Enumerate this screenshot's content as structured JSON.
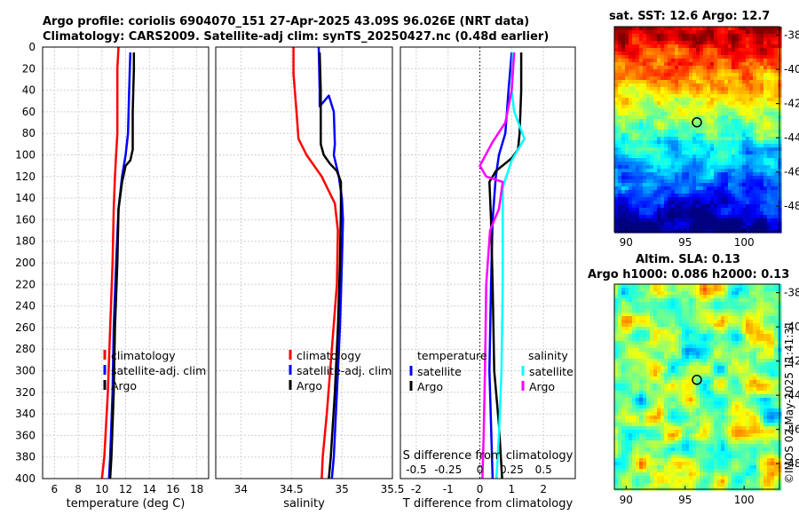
{
  "header": {
    "line1": "Argo profile: coriolis 6904070_151 27-Apr-2025 43.09S 96.026E (NRT data)",
    "line2": "Climatology: CARS2009. Satellite-adj clim: synTS_20250427.nc (0.48d earlier)"
  },
  "colors": {
    "climatology": "#ff0000",
    "satellite": "#0000ff",
    "argo": "#000000",
    "s_satellite": "#00ffff",
    "s_argo": "#ff00ff"
  },
  "chart_data": [
    {
      "type": "line",
      "xlabel": "temperature (deg C)",
      "ylabel": "",
      "xlim": [
        5,
        19
      ],
      "ylim": [
        400,
        0
      ],
      "xticks": [
        "6",
        "8",
        "10",
        "12",
        "14",
        "16",
        "18"
      ],
      "yticks": [
        "0",
        "20",
        "40",
        "60",
        "80",
        "100",
        "120",
        "140",
        "160",
        "180",
        "200",
        "220",
        "240",
        "260",
        "280",
        "300",
        "320",
        "340",
        "360",
        "380",
        "400"
      ],
      "legend": [
        "climatology",
        "satellite-adj. clim",
        "Argo"
      ],
      "series": [
        {
          "name": "climatology",
          "color": "#ff0000",
          "points": [
            [
              11.4,
              0
            ],
            [
              11.3,
              20
            ],
            [
              11.3,
              80
            ],
            [
              11.2,
              100
            ],
            [
              11.1,
              120
            ],
            [
              11.0,
              150
            ],
            [
              10.9,
              200
            ],
            [
              10.7,
              260
            ],
            [
              10.5,
              320
            ],
            [
              10.2,
              380
            ],
            [
              10.0,
              400
            ]
          ]
        },
        {
          "name": "satellite-adj. clim",
          "color": "#0000ff",
          "points": [
            [
              12.4,
              5
            ],
            [
              12.3,
              40
            ],
            [
              12.2,
              80
            ],
            [
              12.0,
              100
            ],
            [
              11.7,
              120
            ],
            [
              11.4,
              150
            ],
            [
              11.2,
              200
            ],
            [
              11.0,
              260
            ],
            [
              10.9,
              320
            ],
            [
              10.7,
              380
            ],
            [
              10.6,
              400
            ]
          ]
        },
        {
          "name": "Argo",
          "color": "#000000",
          "points": [
            [
              12.7,
              5
            ],
            [
              12.7,
              20
            ],
            [
              12.6,
              60
            ],
            [
              12.6,
              95
            ],
            [
              12.4,
              105
            ],
            [
              12.0,
              110
            ],
            [
              11.7,
              125
            ],
            [
              11.4,
              150
            ],
            [
              11.3,
              200
            ],
            [
              11.1,
              260
            ],
            [
              11.0,
              320
            ],
            [
              10.8,
              380
            ],
            [
              10.7,
              400
            ]
          ]
        }
      ]
    },
    {
      "type": "line",
      "xlabel": "salinity",
      "xlim": [
        33.75,
        35.5
      ],
      "ylim": [
        400,
        0
      ],
      "xticks": [
        "34",
        "34.5",
        "35",
        "35.5"
      ],
      "legend": [
        "climatology",
        "satellite-adj. clim",
        "Argo"
      ],
      "series": [
        {
          "name": "climatology",
          "color": "#ff0000",
          "points": [
            [
              34.52,
              0
            ],
            [
              34.52,
              25
            ],
            [
              34.55,
              60
            ],
            [
              34.57,
              85
            ],
            [
              34.65,
              100
            ],
            [
              34.8,
              120
            ],
            [
              34.93,
              145
            ],
            [
              34.96,
              170
            ],
            [
              34.95,
              220
            ],
            [
              34.9,
              280
            ],
            [
              34.85,
              340
            ],
            [
              34.81,
              380
            ],
            [
              34.8,
              400
            ]
          ]
        },
        {
          "name": "satellite-adj. clim",
          "color": "#0000ff",
          "points": [
            [
              34.77,
              0
            ],
            [
              34.78,
              40
            ],
            [
              34.78,
              55
            ],
            [
              34.87,
              45
            ],
            [
              34.92,
              60
            ],
            [
              34.93,
              90
            ],
            [
              34.92,
              100
            ],
            [
              34.97,
              120
            ],
            [
              35.0,
              140
            ],
            [
              35.01,
              160
            ],
            [
              35.0,
              200
            ],
            [
              34.98,
              260
            ],
            [
              34.95,
              320
            ],
            [
              34.92,
              380
            ],
            [
              34.9,
              400
            ]
          ]
        },
        {
          "name": "Argo",
          "color": "#000000",
          "points": [
            [
              34.78,
              5
            ],
            [
              34.79,
              40
            ],
            [
              34.79,
              90
            ],
            [
              34.82,
              100
            ],
            [
              34.88,
              108
            ],
            [
              34.95,
              115
            ],
            [
              34.99,
              125
            ],
            [
              34.99,
              150
            ],
            [
              34.98,
              200
            ],
            [
              34.96,
              260
            ],
            [
              34.93,
              320
            ],
            [
              34.89,
              380
            ],
            [
              34.87,
              400
            ]
          ]
        }
      ]
    },
    {
      "type": "line",
      "xlabel": "T difference from climatology",
      "x2label": "S difference from climatology",
      "xlim": [
        -2.5,
        3.0
      ],
      "x2lim": [
        -0.625,
        0.75
      ],
      "ylim": [
        400,
        0
      ],
      "xticks": [
        "-2",
        "-1",
        "0",
        "1",
        "2"
      ],
      "x2ticks": [
        "-0.5",
        "-0.25",
        "0",
        "0.25",
        "0.5"
      ],
      "legend_temperature_title": "temperature",
      "legend_salinity_title": "salinity",
      "legend_temperature": [
        "satellite",
        "Argo"
      ],
      "legend_salinity": [
        "satellite",
        "Argo"
      ],
      "series": [
        {
          "name": "T satellite",
          "color": "#0000ff",
          "points": [
            [
              1.0,
              5
            ],
            [
              0.9,
              40
            ],
            [
              0.8,
              80
            ],
            [
              0.6,
              100
            ],
            [
              0.5,
              120
            ],
            [
              0.4,
              160
            ],
            [
              0.35,
              220
            ],
            [
              0.3,
              300
            ],
            [
              0.35,
              350
            ],
            [
              0.4,
              400
            ]
          ]
        },
        {
          "name": "T Argo",
          "color": "#000000",
          "points": [
            [
              1.3,
              5
            ],
            [
              1.3,
              40
            ],
            [
              1.25,
              80
            ],
            [
              1.2,
              95
            ],
            [
              1.0,
              103
            ],
            [
              0.5,
              115
            ],
            [
              0.3,
              125
            ],
            [
              0.35,
              160
            ],
            [
              0.4,
              220
            ],
            [
              0.45,
              300
            ],
            [
              0.6,
              350
            ],
            [
              0.7,
              400
            ]
          ]
        },
        {
          "name": "S satellite",
          "color": "#00ffff",
          "points": [
            [
              0.26,
              5
            ],
            [
              0.25,
              40
            ],
            [
              0.27,
              60
            ],
            [
              0.35,
              85
            ],
            [
              0.25,
              105
            ],
            [
              0.18,
              130
            ],
            [
              0.18,
              170
            ],
            [
              0.18,
              220
            ],
            [
              0.17,
              300
            ],
            [
              0.15,
              360
            ],
            [
              0.13,
              400
            ]
          ]
        },
        {
          "name": "S Argo",
          "color": "#ff00ff",
          "points": [
            [
              0.27,
              5
            ],
            [
              0.25,
              40
            ],
            [
              0.2,
              70
            ],
            [
              0.1,
              88
            ],
            [
              0.0,
              110
            ],
            [
              0.05,
              120
            ],
            [
              0.18,
              125
            ],
            [
              0.15,
              150
            ],
            [
              0.08,
              170
            ],
            [
              0.05,
              220
            ],
            [
              0.04,
              300
            ],
            [
              0.03,
              360
            ],
            [
              0.02,
              400
            ]
          ]
        }
      ]
    }
  ],
  "map_top": {
    "title": "sat. SST: 12.6 Argo: 12.7",
    "xticks": [
      "90",
      "95",
      "100"
    ],
    "yticks": [
      "-38",
      "-40",
      "-42",
      "-44",
      "-46",
      "-48"
    ],
    "lon_range": [
      89,
      103
    ],
    "lat_range": [
      -49.5,
      -37.5
    ],
    "marker": {
      "lon": 96.0,
      "lat": -43.1
    }
  },
  "map_bottom": {
    "title1": "Altim. SLA: 0.13",
    "title2": "Argo h1000: 0.086 h2000: 0.13",
    "xticks": [
      "90",
      "95",
      "100"
    ],
    "yticks": [
      "-38",
      "-40",
      "-42",
      "-44",
      "-46",
      "-48"
    ],
    "lon_range": [
      89,
      103
    ],
    "lat_range": [
      -49.5,
      -37.5
    ],
    "marker": {
      "lon": 96.0,
      "lat": -43.1
    }
  },
  "watermark": "©IMOS 02-May-2025 11:41:31"
}
